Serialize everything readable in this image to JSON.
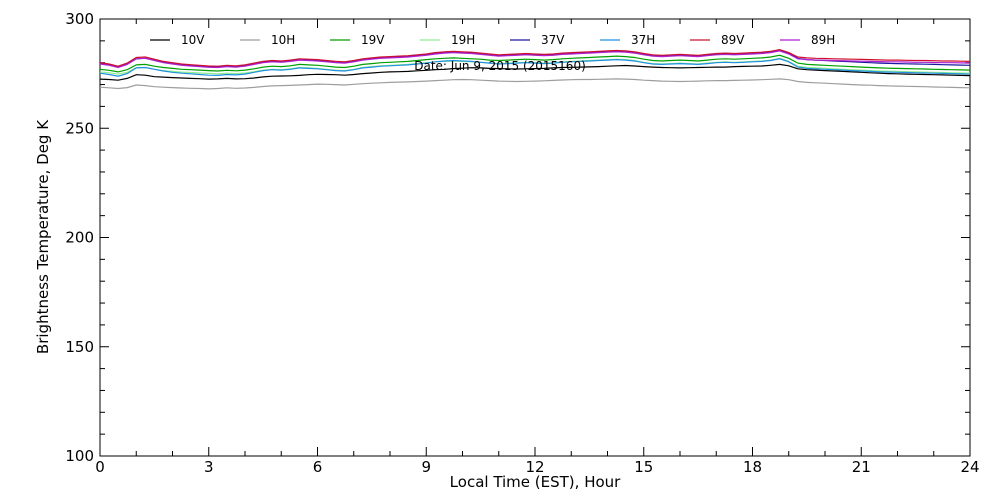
{
  "chart_data": {
    "type": "line",
    "title": "",
    "xlabel": "Local Time (EST), Hour",
    "ylabel": "Brightness Temperature, Deg K",
    "xlim": [
      0,
      24
    ],
    "ylim": [
      100,
      300
    ],
    "x_major_ticks": [
      0,
      3,
      6,
      9,
      12,
      15,
      18,
      21,
      24
    ],
    "y_major_ticks": [
      100,
      150,
      200,
      250,
      300
    ],
    "grid": false,
    "legend_placement": "top",
    "annotation": "Date: Jun  9, 2015 (2015160)",
    "x": [
      0,
      0.25,
      0.5,
      0.75,
      1,
      1.25,
      1.5,
      1.75,
      2,
      2.25,
      2.5,
      2.75,
      3,
      3.25,
      3.5,
      3.75,
      4,
      4.25,
      4.5,
      4.75,
      5,
      5.25,
      5.5,
      5.75,
      6,
      6.25,
      6.5,
      6.75,
      7,
      7.25,
      7.5,
      7.75,
      8,
      8.25,
      8.5,
      8.75,
      9,
      9.25,
      9.5,
      9.75,
      10,
      10.25,
      10.5,
      10.75,
      11,
      11.25,
      11.5,
      11.75,
      12,
      12.25,
      12.5,
      12.75,
      13,
      13.25,
      13.5,
      13.75,
      14,
      14.25,
      14.5,
      14.75,
      15,
      15.25,
      15.5,
      15.75,
      16,
      16.25,
      16.5,
      16.75,
      17,
      17.25,
      17.5,
      17.75,
      18,
      18.25,
      18.5,
      18.75,
      19,
      19.25,
      19.5,
      19.75,
      20,
      20.25,
      20.5,
      20.75,
      21,
      21.25,
      21.5,
      21.75,
      22,
      22.25,
      22.5,
      22.75,
      23,
      23.25,
      23.5,
      23.75,
      24
    ],
    "series": [
      {
        "name": "10V",
        "color": "#000000",
        "values": [
          272.5,
          272.3,
          272.0,
          272.8,
          274.5,
          274.3,
          273.6,
          273.4,
          273.2,
          273.0,
          272.8,
          272.7,
          272.5,
          272.6,
          272.8,
          272.6,
          272.7,
          273.0,
          273.5,
          273.8,
          273.9,
          274.0,
          274.2,
          274.5,
          274.7,
          274.6,
          274.5,
          274.3,
          274.6,
          275.0,
          275.3,
          275.6,
          275.8,
          275.9,
          276.0,
          276.3,
          276.5,
          276.8,
          277.0,
          277.3,
          277.5,
          277.7,
          277.6,
          277.4,
          277.3,
          277.2,
          277.1,
          277.2,
          277.3,
          277.4,
          277.6,
          277.8,
          277.9,
          278.0,
          278.1,
          278.2,
          278.4,
          278.6,
          278.7,
          278.5,
          278.2,
          278.0,
          277.8,
          277.7,
          277.6,
          277.7,
          277.8,
          277.9,
          278.0,
          278.0,
          278.2,
          278.3,
          278.4,
          278.5,
          278.8,
          279.2,
          278.6,
          277.2,
          276.8,
          276.6,
          276.4,
          276.2,
          276.0,
          275.8,
          275.6,
          275.4,
          275.2,
          275.0,
          274.9,
          274.8,
          274.7,
          274.6,
          274.5,
          274.4,
          274.3,
          274.2,
          274.1
        ]
      },
      {
        "name": "10H",
        "color": "#9e9e9e",
        "values": [
          268.8,
          268.5,
          268.2,
          268.6,
          269.8,
          269.5,
          269.0,
          268.8,
          268.6,
          268.4,
          268.3,
          268.2,
          268.0,
          268.2,
          268.5,
          268.3,
          268.4,
          268.7,
          269.1,
          269.4,
          269.5,
          269.6,
          269.8,
          270.0,
          270.2,
          270.1,
          270.0,
          269.8,
          270.1,
          270.4,
          270.6,
          270.8,
          271.0,
          271.1,
          271.2,
          271.4,
          271.6,
          271.8,
          272.0,
          272.2,
          272.3,
          272.2,
          272.0,
          271.8,
          271.6,
          271.5,
          271.4,
          271.5,
          271.6,
          271.7,
          271.9,
          272.1,
          272.2,
          272.3,
          272.3,
          272.4,
          272.5,
          272.6,
          272.5,
          272.3,
          272.0,
          271.8,
          271.6,
          271.5,
          271.4,
          271.5,
          271.6,
          271.7,
          271.8,
          271.8,
          271.9,
          272.0,
          272.1,
          272.2,
          272.4,
          272.6,
          272.2,
          271.4,
          271.0,
          270.8,
          270.6,
          270.4,
          270.2,
          270.0,
          269.8,
          269.7,
          269.5,
          269.4,
          269.3,
          269.2,
          269.1,
          269.0,
          268.9,
          268.8,
          268.7,
          268.6,
          268.5
        ]
      },
      {
        "name": "19V",
        "color": "#00a000",
        "values": [
          277.0,
          276.5,
          275.8,
          276.8,
          279.0,
          279.2,
          278.4,
          277.8,
          277.4,
          277.0,
          276.8,
          276.6,
          276.4,
          276.2,
          276.5,
          276.3,
          276.6,
          277.2,
          278.0,
          278.4,
          278.2,
          278.6,
          279.2,
          279.0,
          278.8,
          278.4,
          278.0,
          277.8,
          278.4,
          279.2,
          279.6,
          280.0,
          280.2,
          280.4,
          280.6,
          281.0,
          281.4,
          281.8,
          282.0,
          282.2,
          282.0,
          281.8,
          281.6,
          281.2,
          281.0,
          281.2,
          281.4,
          281.6,
          281.4,
          281.2,
          281.4,
          281.8,
          282.0,
          282.2,
          282.4,
          282.6,
          282.8,
          283.0,
          282.8,
          282.4,
          281.6,
          281.0,
          280.8,
          281.0,
          281.2,
          281.0,
          280.8,
          281.2,
          281.6,
          281.8,
          281.6,
          281.8,
          282.0,
          282.2,
          282.6,
          283.4,
          282.0,
          279.8,
          279.2,
          279.0,
          278.8,
          278.6,
          278.4,
          278.2,
          278.0,
          277.8,
          277.6,
          277.5,
          277.4,
          277.3,
          277.2,
          277.1,
          277.0,
          276.9,
          276.8,
          276.7,
          276.6
        ]
      },
      {
        "name": "19H",
        "color": "#90ee90",
        "values": [
          275.8,
          275.4,
          274.8,
          275.6,
          277.6,
          277.8,
          277.0,
          276.4,
          276.0,
          275.7,
          275.5,
          275.3,
          275.1,
          274.9,
          275.2,
          275.0,
          275.3,
          275.9,
          276.6,
          277.0,
          276.8,
          277.2,
          277.8,
          277.6,
          277.4,
          277.0,
          276.6,
          276.4,
          277.0,
          277.8,
          278.2,
          278.6,
          278.8,
          279.0,
          279.2,
          279.6,
          280.0,
          280.4,
          280.6,
          280.8,
          280.6,
          280.4,
          280.2,
          279.8,
          279.6,
          279.8,
          280.0,
          280.2,
          280.0,
          279.8,
          280.0,
          280.4,
          280.6,
          280.8,
          281.0,
          281.2,
          281.4,
          281.6,
          281.4,
          281.0,
          280.2,
          279.6,
          279.4,
          279.6,
          279.8,
          279.6,
          279.4,
          279.8,
          280.2,
          280.4,
          280.2,
          280.4,
          280.6,
          280.8,
          281.2,
          282.0,
          280.6,
          278.4,
          277.8,
          277.6,
          277.4,
          277.2,
          277.0,
          276.8,
          276.6,
          276.4,
          276.2,
          276.1,
          276.0,
          275.9,
          275.8,
          275.7,
          275.6,
          275.5,
          275.4,
          275.3,
          275.2
        ]
      },
      {
        "name": "37V",
        "color": "#1a1aa0",
        "values": [
          279.6,
          279.0,
          278.2,
          279.4,
          281.8,
          282.0,
          281.2,
          280.4,
          279.8,
          279.2,
          278.9,
          278.6,
          278.3,
          278.2,
          278.6,
          278.4,
          278.8,
          279.6,
          280.4,
          280.8,
          280.6,
          281.0,
          281.6,
          281.4,
          281.2,
          280.8,
          280.4,
          280.2,
          280.8,
          281.6,
          282.0,
          282.4,
          282.6,
          282.8,
          283.0,
          283.4,
          283.8,
          284.4,
          284.8,
          285.0,
          284.8,
          284.6,
          284.2,
          283.8,
          283.4,
          283.6,
          283.8,
          284.0,
          283.8,
          283.6,
          283.8,
          284.2,
          284.4,
          284.6,
          284.8,
          285.0,
          285.2,
          285.4,
          285.2,
          284.8,
          284.0,
          283.4,
          283.2,
          283.4,
          283.6,
          283.4,
          283.2,
          283.6,
          284.0,
          284.2,
          284.0,
          284.2,
          284.4,
          284.6,
          285.0,
          285.8,
          284.4,
          282.0,
          281.4,
          281.2,
          281.0,
          280.8,
          280.6,
          280.4,
          280.2,
          280.0,
          279.8,
          279.7,
          279.6,
          279.5,
          279.4,
          279.3,
          279.2,
          279.1,
          279.0,
          278.9,
          278.8
        ]
      },
      {
        "name": "37H",
        "color": "#2090e0",
        "values": [
          275.2,
          274.6,
          273.8,
          275.0,
          277.6,
          277.8,
          277.0,
          276.2,
          275.6,
          275.2,
          274.9,
          274.6,
          274.3,
          274.2,
          274.6,
          274.4,
          274.8,
          275.6,
          276.4,
          276.8,
          276.6,
          277.0,
          277.6,
          277.4,
          277.2,
          276.8,
          276.4,
          276.2,
          276.8,
          277.6,
          278.0,
          278.4,
          278.6,
          278.8,
          279.0,
          279.4,
          279.8,
          280.4,
          280.8,
          281.0,
          280.8,
          280.6,
          280.2,
          279.8,
          279.4,
          279.6,
          279.8,
          280.0,
          279.8,
          279.6,
          279.8,
          280.2,
          280.4,
          280.6,
          280.8,
          281.0,
          281.2,
          281.4,
          281.2,
          280.8,
          280.0,
          279.4,
          279.2,
          279.4,
          279.6,
          279.4,
          279.2,
          279.6,
          280.0,
          280.2,
          280.0,
          280.2,
          280.4,
          280.6,
          281.0,
          281.8,
          280.4,
          278.0,
          277.4,
          277.2,
          277.0,
          276.8,
          276.6,
          276.4,
          276.2,
          276.0,
          275.8,
          275.7,
          275.6,
          275.5,
          275.4,
          275.3,
          275.2,
          275.1,
          275.0,
          274.9,
          274.8
        ]
      },
      {
        "name": "89V",
        "color": "#d01030",
        "values": [
          280.0,
          279.4,
          278.4,
          279.8,
          282.4,
          282.6,
          281.6,
          280.6,
          280.0,
          279.4,
          279.1,
          278.8,
          278.5,
          278.4,
          278.8,
          278.6,
          279.0,
          279.8,
          280.6,
          281.0,
          280.8,
          281.2,
          281.8,
          281.6,
          281.4,
          281.0,
          280.6,
          280.4,
          281.0,
          281.8,
          282.2,
          282.6,
          282.8,
          283.0,
          283.2,
          283.6,
          284.0,
          284.6,
          285.0,
          285.2,
          285.0,
          284.8,
          284.4,
          284.0,
          283.6,
          283.8,
          284.0,
          284.2,
          284.0,
          283.8,
          284.0,
          284.4,
          284.6,
          284.8,
          285.0,
          285.2,
          285.4,
          285.6,
          285.4,
          285.0,
          284.2,
          283.6,
          283.4,
          283.6,
          283.8,
          283.6,
          283.4,
          283.8,
          284.2,
          284.4,
          284.2,
          284.4,
          284.6,
          284.8,
          285.2,
          286.0,
          284.6,
          282.6,
          282.2,
          282.0,
          281.9,
          281.8,
          281.7,
          281.6,
          281.5,
          281.4,
          281.3,
          281.2,
          281.2,
          281.1,
          281.0,
          281.0,
          280.9,
          280.8,
          280.8,
          280.7,
          280.6
        ]
      },
      {
        "name": "89H",
        "color": "#b020d0",
        "values": [
          279.4,
          278.8,
          277.8,
          279.2,
          281.8,
          282.0,
          281.0,
          280.0,
          279.4,
          278.8,
          278.5,
          278.2,
          277.9,
          277.8,
          278.2,
          278.0,
          278.4,
          279.2,
          280.0,
          280.4,
          280.2,
          280.6,
          281.2,
          281.0,
          280.8,
          280.4,
          280.0,
          279.8,
          280.4,
          281.2,
          281.6,
          282.0,
          282.2,
          282.4,
          282.6,
          283.0,
          283.4,
          284.0,
          284.4,
          284.6,
          284.4,
          284.2,
          283.8,
          283.4,
          283.0,
          283.2,
          283.4,
          283.6,
          283.4,
          283.2,
          283.4,
          283.8,
          284.0,
          284.2,
          284.4,
          284.6,
          284.8,
          285.0,
          284.8,
          284.4,
          283.6,
          283.0,
          282.8,
          283.0,
          283.2,
          283.0,
          282.8,
          283.2,
          283.6,
          283.8,
          283.6,
          283.8,
          284.0,
          284.2,
          284.6,
          285.4,
          284.0,
          281.8,
          281.4,
          281.2,
          281.1,
          281.0,
          280.9,
          280.8,
          280.7,
          280.6,
          280.5,
          280.4,
          280.4,
          280.3,
          280.2,
          280.2,
          280.1,
          280.0,
          280.0,
          279.9,
          279.8
        ]
      }
    ]
  }
}
